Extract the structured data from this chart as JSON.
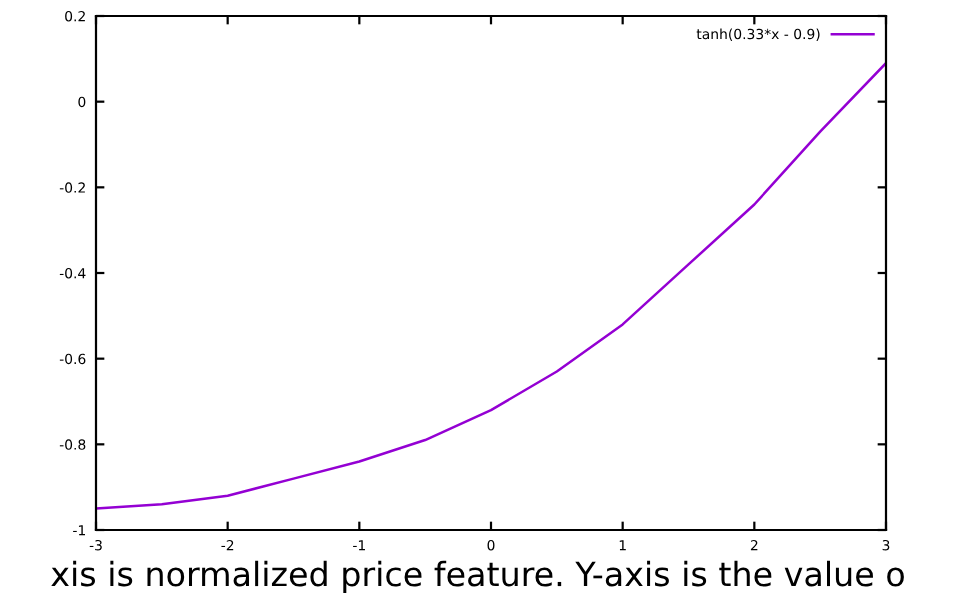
{
  "chart_data": {
    "type": "line",
    "x": [
      -3,
      -2.5,
      -2,
      -1.5,
      -1,
      -0.5,
      0,
      0.5,
      1,
      1.5,
      2,
      2.5,
      3
    ],
    "series": [
      {
        "name": "tanh(0.33*x - 0.9)",
        "color": "#9400d3",
        "values": [
          -0.95,
          -0.94,
          -0.92,
          -0.88,
          -0.84,
          -0.79,
          -0.72,
          -0.63,
          -0.52,
          -0.38,
          -0.24,
          -0.07,
          0.09
        ]
      }
    ],
    "xlim": [
      -3,
      3
    ],
    "xticks": [
      -3,
      -2,
      -1,
      0,
      1,
      2,
      3
    ],
    "ylim": [
      -1,
      0.2
    ],
    "yticks": [
      -1,
      -0.8,
      -0.6,
      -0.4,
      -0.2,
      0,
      0.2
    ],
    "grid": false,
    "legend": "top right",
    "marker": "none",
    "line_style": "solid",
    "annotations": [
      "xis is normalized price feature. Y-axis is the value o"
    ]
  }
}
